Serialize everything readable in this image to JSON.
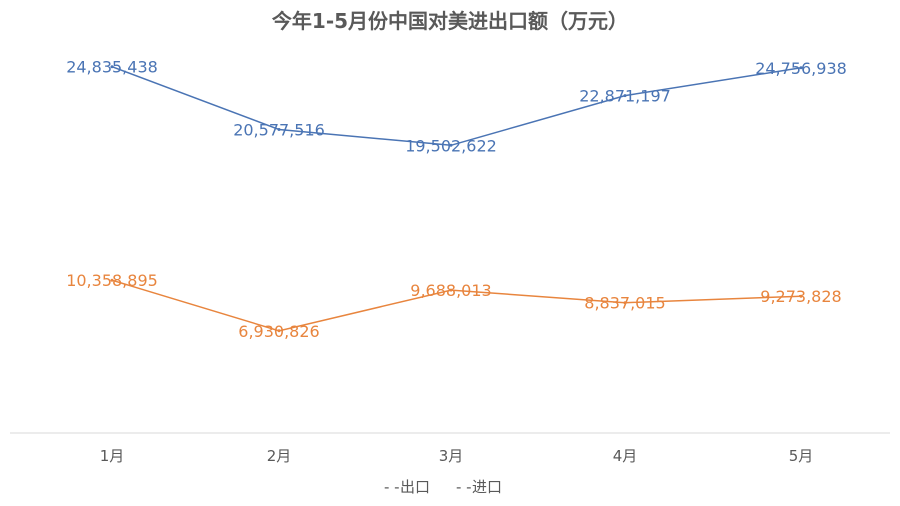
{
  "chart_data": {
    "type": "line",
    "title": "今年1-5月份中国对美进出口额（万元）",
    "categories": [
      "1月",
      "2月",
      "3月",
      "4月",
      "5月"
    ],
    "series": [
      {
        "name": "出口",
        "color": "#4a74b4",
        "values": [
          24835438,
          20577516,
          19502622,
          22871197,
          24756938
        ],
        "labels": [
          "24,835,438",
          "20,577,516",
          "19,502,622",
          "22,871,197",
          "24,756,938"
        ]
      },
      {
        "name": "进口",
        "color": "#e8853e",
        "values": [
          10358895,
          6930826,
          9688013,
          8837015,
          9273828
        ],
        "labels": [
          "10,358,895",
          "6,930,826",
          "9,688,013",
          "8,837,015",
          "9,273,828"
        ]
      }
    ],
    "ylim": [
      0,
      28000000
    ],
    "grid": false,
    "legend_position": "bottom",
    "legend_marker": "- -"
  }
}
